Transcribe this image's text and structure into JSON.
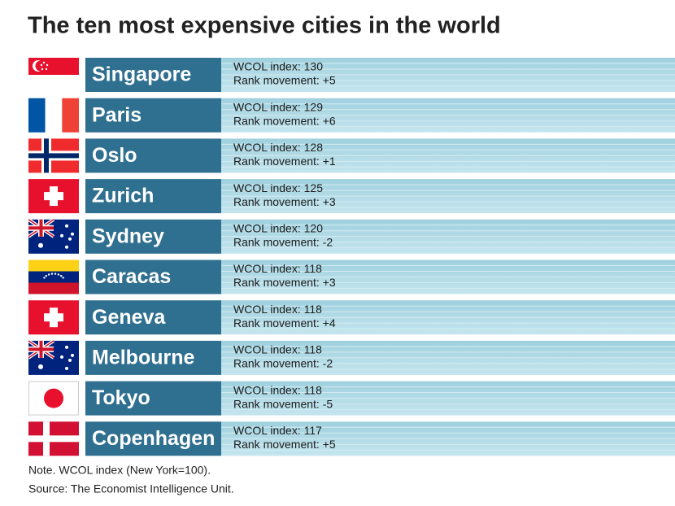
{
  "title": "The ten most expensive cities in the world",
  "rows": [
    {
      "city": "Singapore",
      "index": "WCOL index: 130",
      "rank": "Rank movement: +5"
    },
    {
      "city": "Paris",
      "index": "WCOL index: 129",
      "rank": "Rank movement: +6"
    },
    {
      "city": "Oslo",
      "index": "WCOL index: 128",
      "rank": "Rank movement: +1"
    },
    {
      "city": "Zurich",
      "index": "WCOL index: 125",
      "rank": "Rank movement: +3"
    },
    {
      "city": "Sydney",
      "index": "WCOL index: 120",
      "rank": "Rank movement: -2"
    },
    {
      "city": "Caracas",
      "index": "WCOL index: 118",
      "rank": "Rank movement: +3"
    },
    {
      "city": "Geneva",
      "index": "WCOL index: 118",
      "rank": "Rank movement: +4"
    },
    {
      "city": "Melbourne",
      "index": "WCOL index: 118",
      "rank": "Rank movement: -2"
    },
    {
      "city": "Tokyo",
      "index": "WCOL index: 118",
      "rank": "Rank movement: -5"
    },
    {
      "city": "Copenhagen",
      "index": "WCOL index: 117",
      "rank": "Rank movement: +5"
    }
  ],
  "notes": [
    "Note. WCOL index (New York=100).",
    "Source: The Economist Intelligence Unit."
  ]
}
